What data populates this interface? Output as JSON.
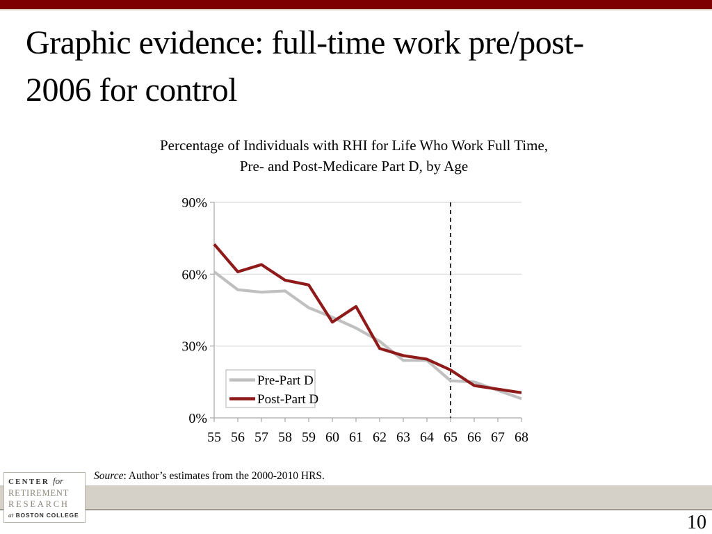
{
  "slide": {
    "title_lines": [
      "Graphic evidence: full-time work pre/post-",
      "2006 for control"
    ],
    "page_number": "10"
  },
  "source_note": {
    "label_italic": "Source",
    "text": ": Author’s estimates from the 2000-2010 HRS."
  },
  "logo": {
    "line1_caps": "CENTER",
    "line1_italic": "for",
    "line2": "RETIREMENT",
    "line3": "RESEARCH",
    "line4_italic": "at",
    "line4_caps": "BOSTON COLLEGE"
  },
  "colors": {
    "top_bar_maroon": "#7e0000",
    "top_bar_underline": "#d9cfc3",
    "pre_part_d_line": "#c0c0c0",
    "post_part_d_line": "#8f1a1a",
    "gridline": "#d9d9d9",
    "axis": "#a6a6a6",
    "dashed_vline": "#1a1a1a",
    "footer_band": "#d6d1c8",
    "footer_band_edge": "#9e9a91",
    "legend_border": "#bfbfbf",
    "logo_gray_text": "#8d8779",
    "logo_dark_text": "#2f2f2f"
  },
  "chart_data": {
    "type": "line",
    "title_lines": [
      "Percentage of Individuals with RHI for Life Who Work Full Time,",
      "Pre- and Post-Medicare Part D, by Age"
    ],
    "x": [
      55,
      56,
      57,
      58,
      59,
      60,
      61,
      62,
      63,
      64,
      65,
      66,
      67,
      68
    ],
    "xlabel": "",
    "ylabel": "",
    "ylim": [
      0,
      90
    ],
    "yticks": [
      0,
      30,
      60,
      90
    ],
    "ytick_suffix": "%",
    "grid": true,
    "vline_x": 65,
    "vline_style": "dashed",
    "legend_position": "lower-left",
    "series": [
      {
        "name": "Pre-Part D",
        "color": "#c0c0c0",
        "values": [
          61,
          53.5,
          52.5,
          53,
          46,
          42,
          37.5,
          32,
          24,
          24,
          15.5,
          15,
          11.5,
          8
        ]
      },
      {
        "name": "Post-Part D",
        "color": "#8f1a1a",
        "values": [
          72.5,
          61,
          64,
          57.5,
          55.5,
          40,
          46.5,
          29,
          26,
          24.5,
          20,
          13.5,
          12,
          10.5
        ]
      }
    ]
  }
}
